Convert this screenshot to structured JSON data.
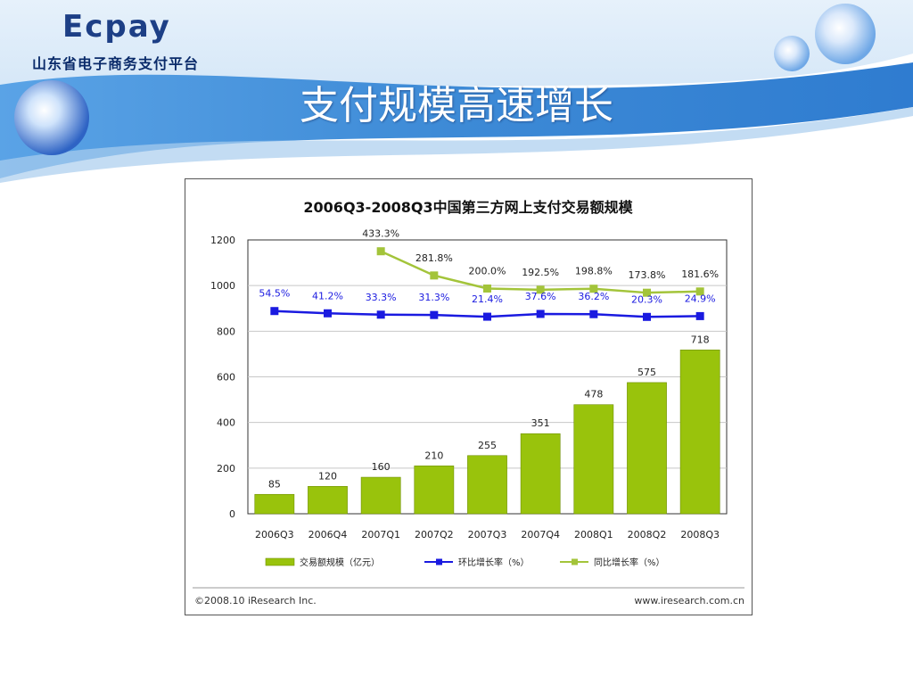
{
  "header": {
    "logo_text": "Ecpay",
    "logo_subtitle": "山东省电子商务支付平台",
    "slide_title": "支付规模高速增长"
  },
  "colors": {
    "bar": "#99c30c",
    "bar_edge": "#6f8f00",
    "qoq_line": "#1a1ae0",
    "yoy_line": "#a3c43a",
    "header_blue": "#3d8ad6"
  },
  "chart_data": {
    "type": "bar",
    "title": "2006Q3-2008Q3中国第三方网上支付交易额规模",
    "categories": [
      "2006Q3",
      "2006Q4",
      "2007Q1",
      "2007Q2",
      "2007Q3",
      "2007Q4",
      "2008Q1",
      "2008Q2",
      "2008Q3"
    ],
    "ylim": [
      0,
      1200
    ],
    "yticks": [
      0,
      200,
      400,
      600,
      800,
      1000,
      1200
    ],
    "grid": true,
    "legend_position": "bottom",
    "series": [
      {
        "name": "交易额规模（亿元）",
        "kind": "bar",
        "values": [
          85,
          120,
          160,
          210,
          255,
          351,
          478,
          575,
          718
        ],
        "labels": [
          "85",
          "120",
          "160",
          "210",
          "255",
          "351",
          "478",
          "575",
          "718"
        ]
      },
      {
        "name": "环比增长率（%）",
        "kind": "line",
        "values": [
          54.5,
          41.2,
          33.3,
          31.3,
          21.4,
          37.6,
          36.2,
          20.3,
          24.9
        ],
        "labels": [
          "54.5%",
          "41.2%",
          "33.3%",
          "31.3%",
          "21.4%",
          "37.6%",
          "36.2%",
          "20.3%",
          "24.9%"
        ]
      },
      {
        "name": "同比增长率（%）",
        "kind": "line",
        "values": [
          null,
          null,
          433.3,
          281.8,
          200.0,
          192.5,
          198.8,
          173.8,
          181.6
        ],
        "labels": [
          "",
          "",
          "433.3%",
          "281.8%",
          "200.0%",
          "192.5%",
          "198.8%",
          "173.8%",
          "181.6%"
        ]
      }
    ],
    "footer_left": "©2008.10 iResearch Inc.",
    "footer_right": "www.iresearch.com.cn"
  }
}
